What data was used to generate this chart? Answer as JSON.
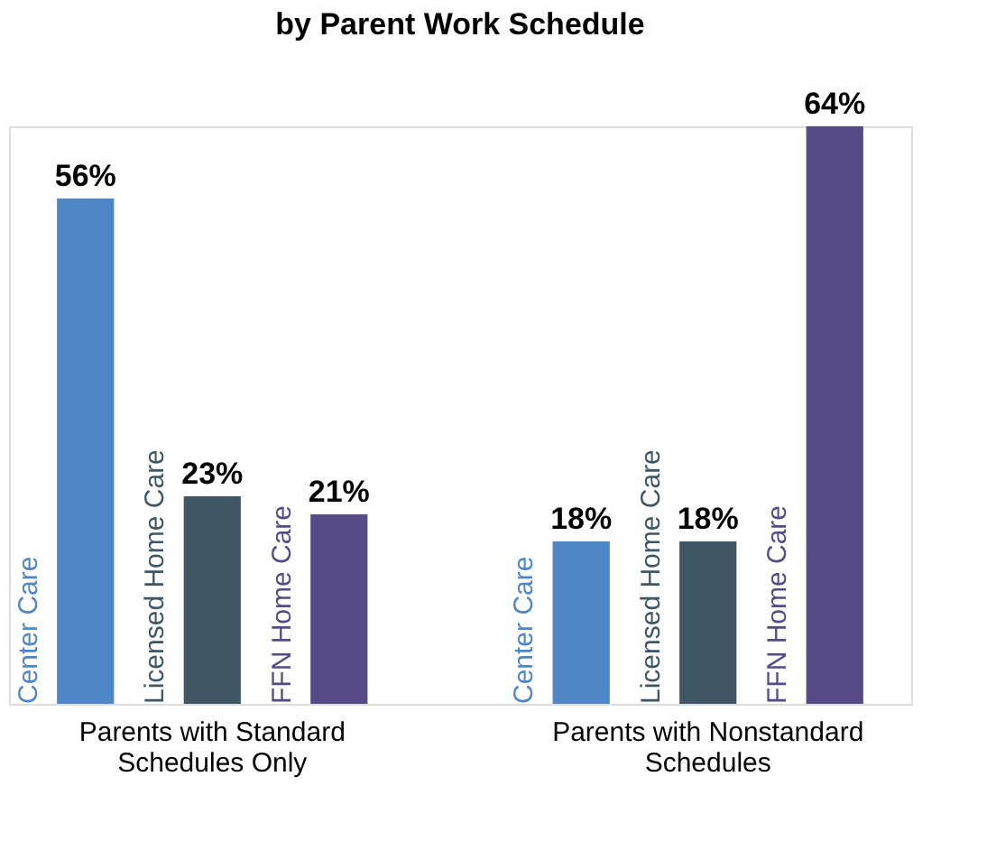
{
  "chart_data": {
    "type": "bar",
    "title": "by Parent Work Schedule",
    "categories": [
      "Parents with Standard Schedules Only",
      "Parents with Nonstandard Schedules"
    ],
    "series": [
      {
        "name": "Center Care",
        "color": "#4f86c6",
        "values": [
          56,
          18
        ],
        "value_labels": [
          "56%",
          "18%"
        ]
      },
      {
        "name": "Licensed Home Care",
        "color": "#3f5664",
        "values": [
          23,
          18
        ],
        "value_labels": [
          "23%",
          "18%"
        ]
      },
      {
        "name": "FFN Home Care",
        "color": "#564a87",
        "values": [
          21,
          64
        ],
        "value_labels": [
          "21%",
          "64%"
        ]
      }
    ],
    "legend": false,
    "tick_labels": "x"
  }
}
